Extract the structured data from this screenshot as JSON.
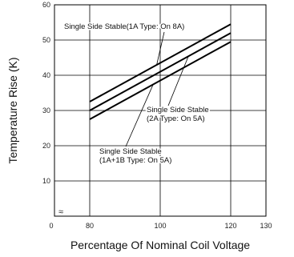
{
  "chart_data": {
    "type": "line",
    "xlabel": "Percentage Of Nominal Coil Voltage",
    "ylabel": "Temperature Rise (K)",
    "xlim": [
      70,
      130
    ],
    "ylim": [
      0,
      60
    ],
    "x_ticks": [
      80,
      100,
      120,
      130
    ],
    "x_tick_labels": [
      "80",
      "100",
      "120",
      "130"
    ],
    "x_origin_label": "0",
    "y_ticks": [
      10,
      20,
      30,
      40,
      50,
      60
    ],
    "y_tick_labels": [
      "10",
      "20",
      "30",
      "40",
      "50",
      "60"
    ],
    "axis_break_mark": "≈",
    "grid": true,
    "series": [
      {
        "name": "Single Side Stable(1A Type: On 8A)",
        "x": [
          80,
          120
        ],
        "y": [
          32.5,
          54.5
        ]
      },
      {
        "name": "Single Side Stable (2A Type: On 5A)",
        "x": [
          80,
          120
        ],
        "y": [
          30,
          52
        ]
      },
      {
        "name": "Single Side Stable (1A+1B Type: On 5A)",
        "x": [
          80,
          120
        ],
        "y": [
          27.5,
          49.5
        ]
      }
    ],
    "annotations": [
      {
        "lines": [
          "Single Side Stable(1A Type: On 8A)"
        ],
        "target_series": 0,
        "target_x": 99
      },
      {
        "lines": [
          "Single Side Stable",
          "(2A Type: On 5A)"
        ],
        "target_series": 1,
        "target_x": 108
      },
      {
        "lines": [
          "Single Side Stable",
          "(1A+1B Type: On 5A)"
        ],
        "target_series": 2,
        "target_x": 98
      }
    ]
  }
}
